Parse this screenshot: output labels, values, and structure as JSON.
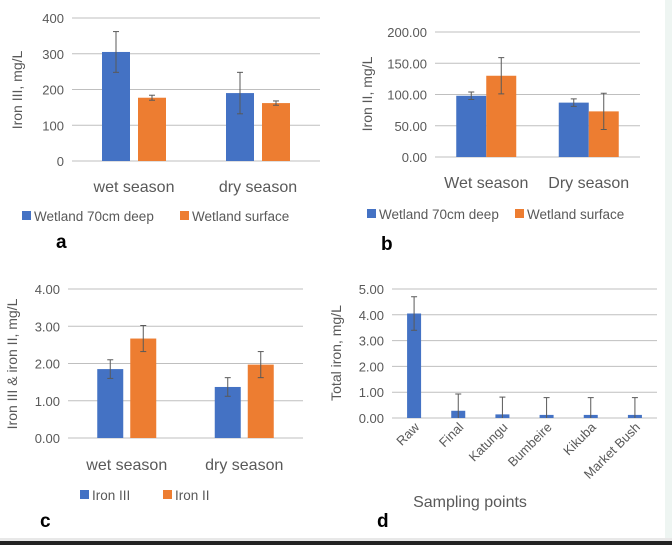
{
  "colors": {
    "blue": "#4472c4",
    "orange": "#ed7d31",
    "grid": "#bfbfbf",
    "error": "#595959"
  },
  "chart_data": [
    {
      "panel_label": "a",
      "type": "bar",
      "ylabel": "Iron III, mg/L",
      "xlabel": "",
      "ylim": [
        0,
        400
      ],
      "yticks": [
        "0",
        "100",
        "200",
        "300",
        "400"
      ],
      "grid": true,
      "legend_position": "bottom",
      "categories": [
        "wet season",
        "dry season"
      ],
      "series": [
        {
          "name": "Wetland 70cm deep",
          "color": "#4472c4",
          "values": [
            305,
            190
          ],
          "errors": [
            57,
            58
          ]
        },
        {
          "name": "Wetland surface",
          "color": "#ed7d31",
          "values": [
            177,
            162
          ],
          "errors": [
            7,
            6
          ]
        }
      ]
    },
    {
      "panel_label": "b",
      "type": "bar",
      "ylabel": "Iron II, mg/L",
      "xlabel": "",
      "ylim": [
        0,
        200
      ],
      "yticks": [
        "0.00",
        "50.00",
        "100.00",
        "150.00",
        "200.00"
      ],
      "grid": true,
      "legend_position": "bottom",
      "categories": [
        "Wet season",
        "Dry season"
      ],
      "series": [
        {
          "name": "Wetland 70cm deep",
          "color": "#4472c4",
          "values": [
            98,
            87
          ],
          "errors": [
            6,
            6
          ]
        },
        {
          "name": "Wetland surface",
          "color": "#ed7d31",
          "values": [
            130,
            73
          ],
          "errors": [
            29,
            29
          ]
        }
      ]
    },
    {
      "panel_label": "c",
      "type": "bar",
      "ylabel": "Iron III & iron II, mg/L",
      "xlabel": "",
      "ylim": [
        0,
        4
      ],
      "yticks": [
        "0.00",
        "1.00",
        "2.00",
        "3.00",
        "4.00"
      ],
      "grid": true,
      "legend_position": "bottom",
      "categories": [
        "wet season",
        "dry season"
      ],
      "series": [
        {
          "name": "Iron III",
          "color": "#4472c4",
          "values": [
            1.85,
            1.37
          ],
          "errors": [
            0.25,
            0.25
          ]
        },
        {
          "name": "Iron II",
          "color": "#ed7d31",
          "values": [
            2.67,
            1.97
          ],
          "errors": [
            0.35,
            0.35
          ]
        }
      ]
    },
    {
      "panel_label": "d",
      "type": "bar",
      "ylabel": "Total iron, mg/L",
      "xlabel": "Sampling points",
      "ylim": [
        0,
        5
      ],
      "yticks": [
        "0.00",
        "1.00",
        "2.00",
        "3.00",
        "4.00",
        "5.00"
      ],
      "grid": true,
      "legend_position": "none",
      "categories": [
        "Raw",
        "Final",
        "Katungu",
        "Bumbeire",
        "Kikuba",
        "Market Bush"
      ],
      "series": [
        {
          "color": "#4472c4",
          "values": [
            4.05,
            0.28,
            0.14,
            0.12,
            0.12,
            0.12
          ],
          "errors": [
            0.65,
            0.65,
            0.67,
            0.67,
            0.67,
            0.67
          ]
        }
      ]
    }
  ]
}
